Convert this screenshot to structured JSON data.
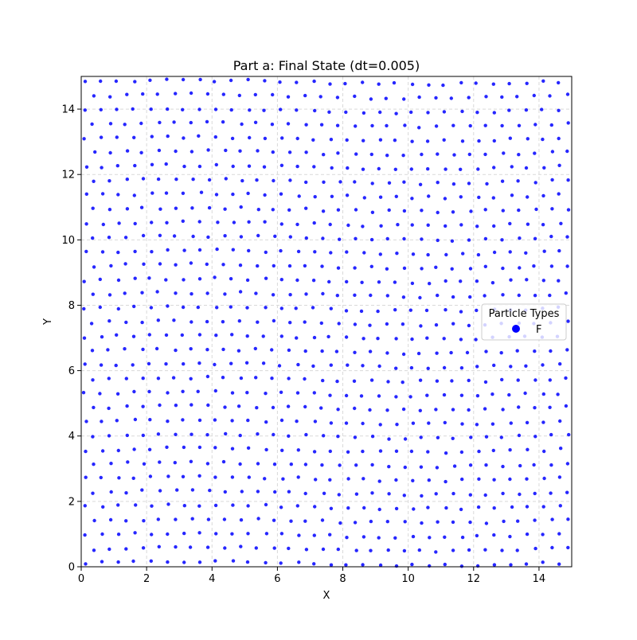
{
  "chart_data": {
    "type": "scatter",
    "title": "Part a: Final State (dt=0.005)",
    "xlabel": "X",
    "ylabel": "Y",
    "xlim": [
      0,
      15
    ],
    "ylim": [
      0,
      15
    ],
    "xticks": [
      0,
      2,
      4,
      6,
      8,
      10,
      12,
      14
    ],
    "yticks": [
      0,
      2,
      4,
      6,
      8,
      10,
      12,
      14
    ],
    "grid": true,
    "grid_style": "dashed",
    "legend": {
      "title": "Particle Types",
      "placement": "center-right",
      "entries": [
        {
          "label": "F",
          "color": "#0000ff"
        }
      ]
    },
    "series": [
      {
        "name": "F",
        "color": "#0000ff",
        "lattice": {
          "description": "roughly triangular particle lattice filling the box",
          "spacing": 0.5,
          "row_spacing": 0.433,
          "origin": [
            0.12,
            0.1
          ],
          "count_estimate": 1040
        }
      }
    ]
  }
}
